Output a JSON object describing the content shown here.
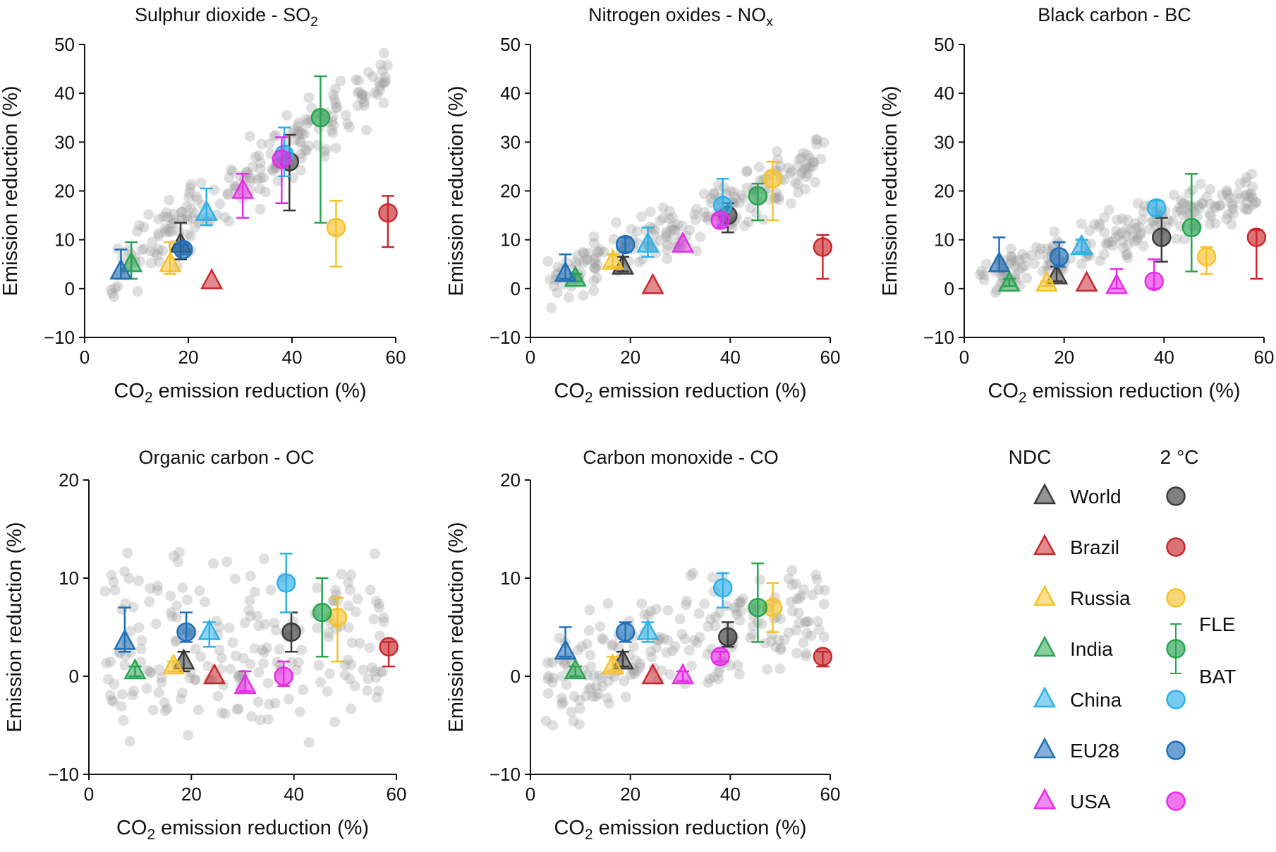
{
  "colors": {
    "World": "#3a3a3a",
    "Brazil": "#c8282d",
    "Russia": "#f6c22a",
    "India": "#27a550",
    "China": "#2cb1e8",
    "EU28": "#1f6fb8",
    "USA": "#e62ce6",
    "background_points": "#9a9a9a"
  },
  "legend": {
    "ndc_label": "NDC",
    "two_deg_label": "2 °C",
    "fle_label": "FLE",
    "bat_label": "BAT",
    "regions": [
      "World",
      "Brazil",
      "Russia",
      "India",
      "China",
      "EU28",
      "USA"
    ]
  },
  "chart_data": [
    {
      "type": "scatter",
      "title": "Sulphur dioxide - SO",
      "title_sub": "2",
      "xlabel": "CO2 emission reduction (%)",
      "xlabel_main": "CO",
      "xlabel_sub": "2",
      "xlabel_rest": " emission reduction (%)",
      "ylabel": "Emission reduction (%)",
      "xlim": [
        0,
        60
      ],
      "ylim": [
        -10,
        50
      ],
      "xticks": [
        0,
        20,
        40,
        60
      ],
      "yticks": [
        -10,
        0,
        10,
        20,
        30,
        40,
        50
      ],
      "ndc": [
        {
          "region": "World",
          "x": 18.5,
          "y": 9,
          "lo": 6,
          "hi": 13.5
        },
        {
          "region": "Brazil",
          "x": 24.5,
          "y": 1.5
        },
        {
          "region": "Russia",
          "x": 16.5,
          "y": 5,
          "lo": 3,
          "hi": 9.5
        },
        {
          "region": "India",
          "x": 9,
          "y": 5,
          "lo": 2,
          "hi": 9.5
        },
        {
          "region": "China",
          "x": 23.5,
          "y": 15.5,
          "lo": 13,
          "hi": 20.5
        },
        {
          "region": "EU28",
          "x": 7,
          "y": 3.5,
          "lo": 2,
          "hi": 8
        },
        {
          "region": "USA",
          "x": 30.5,
          "y": 20,
          "lo": 14.5,
          "hi": 23.5
        }
      ],
      "two_deg": [
        {
          "region": "World",
          "x": 39.5,
          "y": 26,
          "lo": 16,
          "hi": 31.5
        },
        {
          "region": "Brazil",
          "x": 58.5,
          "y": 15.5,
          "lo": 8.5,
          "hi": 19
        },
        {
          "region": "Russia",
          "x": 48.5,
          "y": 12.5,
          "lo": 4.5,
          "hi": 18
        },
        {
          "region": "India",
          "x": 45.5,
          "y": 35,
          "lo": 13.5,
          "hi": 43.5
        },
        {
          "region": "China",
          "x": 38.5,
          "y": 27.5,
          "lo": 23,
          "hi": 33
        },
        {
          "region": "EU28",
          "x": 19,
          "y": 8,
          "lo": 7,
          "hi": 9
        },
        {
          "region": "USA",
          "x": 38,
          "y": 26.5,
          "lo": 17.5,
          "hi": 31
        }
      ],
      "bg": {
        "x0": 5,
        "y0": 3,
        "slope": 0.75,
        "spread": 5,
        "x1": 59
      }
    },
    {
      "type": "scatter",
      "title": "Nitrogen oxides - NO",
      "title_sub": "x",
      "xlabel": "CO2 emission reduction (%)",
      "xlabel_main": "CO",
      "xlabel_sub": "2",
      "xlabel_rest": " emission reduction (%)",
      "ylabel": "Emission reduction (%)",
      "xlim": [
        0,
        60
      ],
      "ylim": [
        -10,
        50
      ],
      "xticks": [
        0,
        20,
        40,
        60
      ],
      "yticks": [
        -10,
        0,
        10,
        20,
        30,
        40,
        50
      ],
      "ndc": [
        {
          "region": "World",
          "x": 18.5,
          "y": 4.5,
          "lo": 3.5,
          "hi": 6.5
        },
        {
          "region": "Brazil",
          "x": 24.5,
          "y": 0.5
        },
        {
          "region": "Russia",
          "x": 16.5,
          "y": 5.5,
          "lo": 4.5,
          "hi": 7
        },
        {
          "region": "India",
          "x": 9,
          "y": 2,
          "lo": 1.5,
          "hi": 3
        },
        {
          "region": "China",
          "x": 23.5,
          "y": 9,
          "lo": 6.5,
          "hi": 12.5
        },
        {
          "region": "EU28",
          "x": 7,
          "y": 3,
          "lo": 2,
          "hi": 7
        },
        {
          "region": "USA",
          "x": 30.5,
          "y": 9
        }
      ],
      "two_deg": [
        {
          "region": "World",
          "x": 39.5,
          "y": 15,
          "lo": 11.5,
          "hi": 17.5
        },
        {
          "region": "Brazil",
          "x": 58.5,
          "y": 8.5,
          "lo": 2,
          "hi": 11
        },
        {
          "region": "Russia",
          "x": 48.5,
          "y": 22.5,
          "lo": 14,
          "hi": 26
        },
        {
          "region": "India",
          "x": 45.5,
          "y": 19,
          "lo": 14,
          "hi": 21.5
        },
        {
          "region": "China",
          "x": 38.5,
          "y": 17,
          "lo": 13,
          "hi": 22.5
        },
        {
          "region": "EU28",
          "x": 19,
          "y": 9,
          "lo": 7.5,
          "hi": 10.5
        },
        {
          "region": "USA",
          "x": 38,
          "y": 14,
          "lo": 12.5,
          "hi": 15
        }
      ],
      "bg": {
        "x0": 3,
        "y0": 1,
        "slope": 0.45,
        "spread": 4,
        "x1": 59
      }
    },
    {
      "type": "scatter",
      "title": "Black carbon - BC",
      "title_sub": "",
      "xlabel": "CO2 emission reduction (%)",
      "xlabel_main": "CO",
      "xlabel_sub": "2",
      "xlabel_rest": " emission reduction (%)",
      "ylabel": "Emission reduction (%)",
      "xlim": [
        0,
        60
      ],
      "ylim": [
        -10,
        50
      ],
      "xticks": [
        0,
        20,
        40,
        60
      ],
      "yticks": [
        -10,
        0,
        10,
        20,
        30,
        40,
        50
      ],
      "ndc": [
        {
          "region": "World",
          "x": 18.5,
          "y": 2.5,
          "lo": 1.5,
          "hi": 4.5
        },
        {
          "region": "Brazil",
          "x": 24.5,
          "y": 1
        },
        {
          "region": "Russia",
          "x": 16.5,
          "y": 1,
          "lo": 0.5,
          "hi": 1.5
        },
        {
          "region": "India",
          "x": 9,
          "y": 1,
          "lo": 0.5,
          "hi": 2
        },
        {
          "region": "China",
          "x": 23.5,
          "y": 8.5,
          "lo": 7.5,
          "hi": 10
        },
        {
          "region": "EU28",
          "x": 7,
          "y": 5,
          "lo": 3.5,
          "hi": 10.5
        },
        {
          "region": "USA",
          "x": 30.5,
          "y": 0.5,
          "lo": 0,
          "hi": 4
        }
      ],
      "two_deg": [
        {
          "region": "World",
          "x": 39.5,
          "y": 10.5,
          "lo": 5.5,
          "hi": 14.5
        },
        {
          "region": "Brazil",
          "x": 58.5,
          "y": 10.5,
          "lo": 2,
          "hi": 12
        },
        {
          "region": "Russia",
          "x": 48.5,
          "y": 6.5,
          "lo": 3,
          "hi": 8.5
        },
        {
          "region": "India",
          "x": 45.5,
          "y": 12.5,
          "lo": 3.5,
          "hi": 23.5
        },
        {
          "region": "China",
          "x": 38.5,
          "y": 16.5,
          "lo": 15,
          "hi": 18
        },
        {
          "region": "EU28",
          "x": 19,
          "y": 6.5,
          "lo": 4.5,
          "hi": 9.5
        },
        {
          "region": "USA",
          "x": 38,
          "y": 1.5,
          "lo": 0,
          "hi": 6
        }
      ],
      "bg": {
        "x0": 3,
        "y0": 1.5,
        "slope": 0.33,
        "spread": 3.5,
        "x1": 59
      }
    },
    {
      "type": "scatter",
      "title": "Organic carbon - OC",
      "title_sub": "",
      "xlabel": "CO2 emission reduction (%)",
      "xlabel_main": "CO",
      "xlabel_sub": "2",
      "xlabel_rest": " emission reduction (%)",
      "ylabel": "Emission reduction (%)",
      "xlim": [
        0,
        60
      ],
      "ylim": [
        -10,
        20
      ],
      "xticks": [
        0,
        20,
        40,
        60
      ],
      "yticks": [
        -10,
        0,
        10,
        20
      ],
      "ndc": [
        {
          "region": "World",
          "x": 18.5,
          "y": 1.5,
          "lo": 0.5,
          "hi": 2.5
        },
        {
          "region": "Brazil",
          "x": 24.5,
          "y": 0
        },
        {
          "region": "Russia",
          "x": 16.5,
          "y": 1,
          "lo": 0.5,
          "hi": 1.5
        },
        {
          "region": "India",
          "x": 9,
          "y": 0.5,
          "lo": 0,
          "hi": 1
        },
        {
          "region": "China",
          "x": 23.5,
          "y": 4.5,
          "lo": 3,
          "hi": 5.5
        },
        {
          "region": "EU28",
          "x": 7,
          "y": 3.5,
          "lo": 2.5,
          "hi": 7
        },
        {
          "region": "USA",
          "x": 30.5,
          "y": -1,
          "lo": -1.5,
          "hi": 0.5
        }
      ],
      "two_deg": [
        {
          "region": "World",
          "x": 39.5,
          "y": 4.5,
          "lo": 2.5,
          "hi": 6.5
        },
        {
          "region": "Brazil",
          "x": 58.5,
          "y": 3,
          "lo": 1,
          "hi": 3.5
        },
        {
          "region": "Russia",
          "x": 48.5,
          "y": 6,
          "lo": 1.5,
          "hi": 8
        },
        {
          "region": "India",
          "x": 45.5,
          "y": 6.5,
          "lo": 2,
          "hi": 10
        },
        {
          "region": "China",
          "x": 38.5,
          "y": 9.5,
          "lo": 6.5,
          "hi": 12.5
        },
        {
          "region": "EU28",
          "x": 19,
          "y": 4.5,
          "lo": 3.5,
          "hi": 6.5
        },
        {
          "region": "USA",
          "x": 38,
          "y": 0,
          "lo": -1,
          "hi": 1.5
        }
      ],
      "bg": {
        "x0": 3,
        "y0": 2,
        "slope": 0.02,
        "spread": 7,
        "x1": 59
      }
    },
    {
      "type": "scatter",
      "title": "Carbon monoxide - CO",
      "title_sub": "",
      "xlabel": "CO2 emission reduction (%)",
      "xlabel_main": "CO",
      "xlabel_sub": "2",
      "xlabel_rest": " emission reduction (%)",
      "ylabel": "Emission reduction (%)",
      "xlim": [
        0,
        60
      ],
      "ylim": [
        -10,
        20
      ],
      "xticks": [
        0,
        20,
        40,
        60
      ],
      "yticks": [
        -10,
        0,
        10,
        20
      ],
      "ndc": [
        {
          "region": "World",
          "x": 18.5,
          "y": 1.5,
          "lo": 1,
          "hi": 2.5
        },
        {
          "region": "Brazil",
          "x": 24.5,
          "y": 0
        },
        {
          "region": "Russia",
          "x": 16.5,
          "y": 1,
          "lo": 0.5,
          "hi": 2
        },
        {
          "region": "India",
          "x": 9,
          "y": 0.5,
          "lo": 0,
          "hi": 1
        },
        {
          "region": "China",
          "x": 23.5,
          "y": 4.5,
          "lo": 3.5,
          "hi": 5.5
        },
        {
          "region": "EU28",
          "x": 7,
          "y": 2.5,
          "lo": 2,
          "hi": 5
        },
        {
          "region": "USA",
          "x": 30.5,
          "y": 0,
          "lo": -0.5,
          "hi": 0.5
        }
      ],
      "two_deg": [
        {
          "region": "World",
          "x": 39.5,
          "y": 4,
          "lo": 3,
          "hi": 5.5
        },
        {
          "region": "Brazil",
          "x": 58.5,
          "y": 2,
          "lo": 1,
          "hi": 2.5
        },
        {
          "region": "Russia",
          "x": 48.5,
          "y": 7,
          "lo": 4.5,
          "hi": 9.5
        },
        {
          "region": "India",
          "x": 45.5,
          "y": 7,
          "lo": 3.5,
          "hi": 11.5
        },
        {
          "region": "China",
          "x": 38.5,
          "y": 9,
          "lo": 7,
          "hi": 10.5
        },
        {
          "region": "EU28",
          "x": 19,
          "y": 4.5,
          "lo": 3.5,
          "hi": 5.5
        },
        {
          "region": "USA",
          "x": 38,
          "y": 2,
          "lo": 1.5,
          "hi": 2.5
        }
      ],
      "bg": {
        "x0": 3,
        "y0": 0,
        "slope": 0.12,
        "spread": 4,
        "x1": 59
      }
    }
  ]
}
